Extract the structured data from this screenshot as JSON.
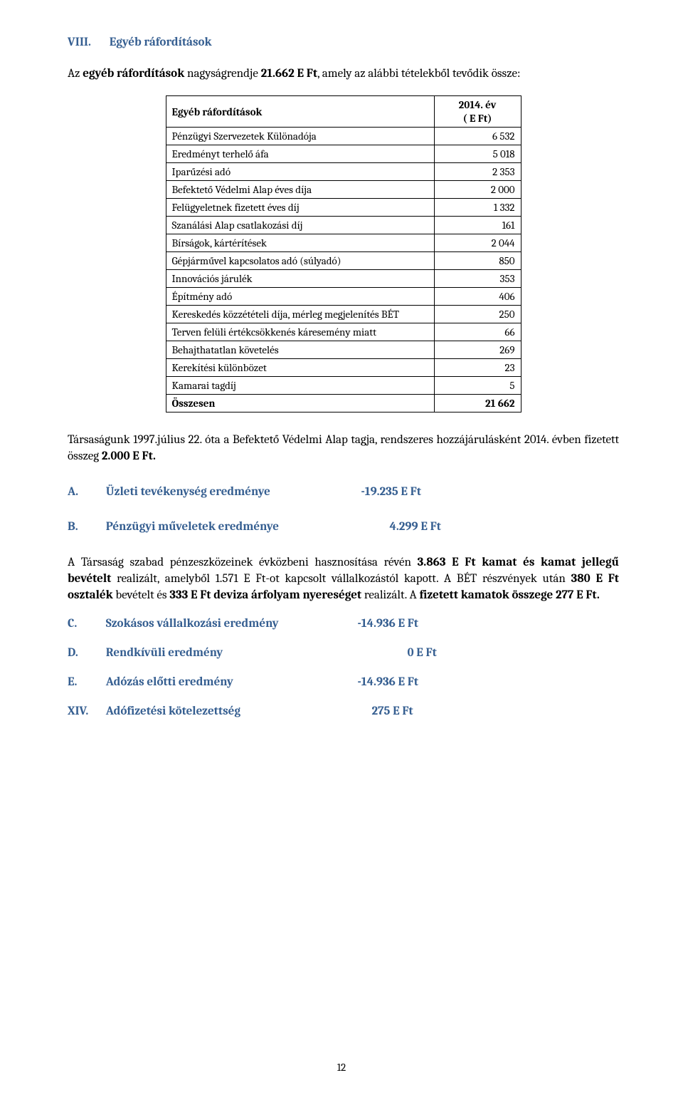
{
  "section8": {
    "num": "VIII.",
    "title": "Egyéb ráfordítások",
    "intro_pre": "Az ",
    "intro_bold1": "egyéb ráfordítások",
    "intro_mid": " nagyságrendje ",
    "intro_bold2": "21.662 E Ft",
    "intro_post": ", amely az alábbi tételekből tevődik össze:"
  },
  "table": {
    "col1": "Egyéb ráfordítások",
    "col2_line1": "2014. év",
    "col2_line2": "( E Ft)",
    "rows": [
      {
        "label": "Pénzügyi Szervezetek Különadója",
        "val": "6 532"
      },
      {
        "label": "Eredményt terhelő áfa",
        "val": "5 018"
      },
      {
        "label": "Iparűzési adó",
        "val": "2 353"
      },
      {
        "label": "Befektető Védelmi Alap éves díja",
        "val": "2 000"
      },
      {
        "label": "Felügyeletnek fizetett éves díj",
        "val": "1 332"
      },
      {
        "label": "Szanálási Alap csatlakozási díj",
        "val": "161"
      },
      {
        "label": "Bírságok, kártérítések",
        "val": "2 044"
      },
      {
        "label": "Gépjárművel kapcsolatos adó (súlyadó)",
        "val": "850"
      },
      {
        "label": "Innovációs járulék",
        "val": "353"
      },
      {
        "label": "Építmény adó",
        "val": "406"
      },
      {
        "label": "Kereskedés közzétételi díja, mérleg megjelenítés BÉT",
        "val": "250"
      },
      {
        "label": "Terven felüli értékcsökkenés káresemény miatt",
        "val": "66"
      },
      {
        "label": "Behajthatatlan követelés",
        "val": "269"
      },
      {
        "label": "Kerekítési különbözet",
        "val": "23"
      },
      {
        "label": "Kamarai tagdíj",
        "val": "5"
      }
    ],
    "total_label": "Összesen",
    "total_val": "21 662"
  },
  "para2": {
    "pre": "Társaságunk 1997.július 22. óta a Befektető Védelmi Alap tagja, rendszeres hozzájárulásként 2014. évben fizetett összeg ",
    "bold": "2.000 E Ft.",
    "post": ""
  },
  "lineA": {
    "code": "A.",
    "label": "Üzleti tevékenység eredménye",
    "val": "-19.235 E Ft"
  },
  "lineB": {
    "code": "B.",
    "label": "Pénzügyi műveletek eredménye",
    "val": "4.299 E Ft"
  },
  "para3": {
    "t1": "A Társaság szabad pénzeszközeinek évközbeni hasznosítása révén ",
    "b1": "3.863 E Ft kamat és kamat jellegű bevételt",
    "t2": " realizált, amelyből 1.571 E Ft-ot kapcsolt vállalkozástól kapott. A BÉT részvények után  ",
    "b2": "380 E Ft osztalék",
    "t3": " bevételt és ",
    "b3": "333 E Ft deviza árfolyam nyereséget",
    "t4": " realizált. A ",
    "b4": "fizetett kamatok összege 277 E Ft.",
    "t5": ""
  },
  "lineC": {
    "code": "C.",
    "label": "Szokásos vállalkozási eredmény",
    "val": "-14.936 E Ft"
  },
  "lineD": {
    "code": "D.",
    "label": "Rendkívüli  eredmény",
    "val": "0 E Ft"
  },
  "lineE": {
    "code": "E.",
    "label": "Adózás előtti eredmény",
    "val": "-14.936 E Ft"
  },
  "lineXIV": {
    "code": "XIV.",
    "label": "Adófizetési kötelezettség",
    "val": "275 E Ft"
  },
  "pagenum": "12"
}
